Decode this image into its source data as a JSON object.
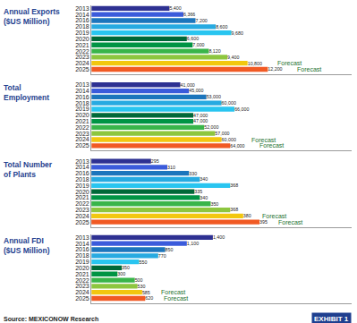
{
  "chart_data": [
    {
      "type": "bar",
      "orientation": "horizontal",
      "title": "Annual Exports\n($US Million)",
      "categories": [
        "2013",
        "2014",
        "2016",
        "2018",
        "2019",
        "2020",
        "2021",
        "2022",
        "2023",
        "2024",
        "2025"
      ],
      "values": [
        5400,
        6366,
        7200,
        8600,
        9680,
        6600,
        7000,
        8120,
        9400,
        10800,
        12200
      ],
      "value_labels": [
        "5,400",
        "6,366",
        "7,200",
        "8,600",
        "9,680",
        "6,600",
        "7,000",
        "8,120",
        "9,400",
        "10,800",
        "12,200"
      ],
      "colors": [
        "#2e3192",
        "#3b5bdb",
        "#1c75bc",
        "#27aae1",
        "#29c5f0",
        "#006838",
        "#009444",
        "#39b54a",
        "#8dc63f",
        "#f2c70f",
        "#f15a24"
      ],
      "xlim": [
        0,
        18000
      ],
      "tick_labels": "y",
      "data_labels": true,
      "annotations": [
        {
          "category": "2024",
          "text": "Forecast"
        },
        {
          "category": "2025",
          "text": "Forecast"
        }
      ]
    },
    {
      "type": "bar",
      "orientation": "horizontal",
      "title": "Total\nEmployment",
      "categories": [
        "2013",
        "2014",
        "2016",
        "2018",
        "2019",
        "2020",
        "2021",
        "2022",
        "2023",
        "2024",
        "2025"
      ],
      "values": [
        41000,
        45000,
        53000,
        60000,
        66000,
        47000,
        47000,
        52000,
        57000,
        60000,
        64000
      ],
      "value_labels": [
        "41,000",
        "45,000",
        "53,000",
        "60,000",
        "66,000",
        "47,000",
        "47,000",
        "52,000",
        "57,000",
        "60,000",
        "64,000"
      ],
      "colors": [
        "#2e3192",
        "#3b5bdb",
        "#1c75bc",
        "#27aae1",
        "#29c5f0",
        "#006838",
        "#009444",
        "#39b54a",
        "#8dc63f",
        "#f2c70f",
        "#f15a24"
      ],
      "xlim": [
        0,
        120000
      ],
      "tick_labels": "y",
      "data_labels": true,
      "annotations": [
        {
          "category": "2024",
          "text": "Forecast"
        },
        {
          "category": "2025",
          "text": "Forecast"
        }
      ]
    },
    {
      "type": "bar",
      "orientation": "horizontal",
      "title": "Total Number\nof Plants",
      "categories": [
        "2013",
        "2014",
        "2016",
        "2018",
        "2019",
        "2020",
        "2021",
        "2022",
        "2023",
        "2024",
        "2025"
      ],
      "values": [
        295,
        310,
        330,
        340,
        368,
        335,
        340,
        350,
        368,
        380,
        395
      ],
      "colors": [
        "#2e3192",
        "#3b5bdb",
        "#1c75bc",
        "#27aae1",
        "#29c5f0",
        "#006838",
        "#009444",
        "#39b54a",
        "#8dc63f",
        "#f2c70f",
        "#f15a24"
      ],
      "xlim": [
        240,
        480
      ],
      "tick_labels": "y",
      "data_labels": true,
      "annotations": [
        {
          "category": "2024",
          "text": "Forecast"
        },
        {
          "category": "2025",
          "text": "Forecast"
        }
      ]
    },
    {
      "type": "bar",
      "orientation": "horizontal",
      "title": "Annual FDI\n($US Million)",
      "categories": [
        "2013",
        "2014",
        "2016",
        "2018",
        "2019",
        "2020",
        "2021",
        "2022",
        "2023",
        "2024",
        "2025"
      ],
      "values": [
        1400,
        1100,
        850,
        770,
        550,
        350,
        300,
        500,
        530,
        585,
        620
      ],
      "value_labels": [
        "1,400",
        "1,100",
        "850",
        "770",
        "550",
        "350",
        "300",
        "500",
        "530",
        "585",
        "620"
      ],
      "colors": [
        "#2e3192",
        "#3b5bdb",
        "#1c75bc",
        "#27aae1",
        "#29c5f0",
        "#006838",
        "#009444",
        "#39b54a",
        "#8dc63f",
        "#f2c70f",
        "#f15a24"
      ],
      "xlim": [
        0,
        3000
      ],
      "tick_labels": "y",
      "data_labels": true,
      "annotations": [
        {
          "category": "2024",
          "text": "Forecast"
        },
        {
          "category": "2025",
          "text": "Forecast"
        }
      ]
    }
  ],
  "source": "Source: MEXICONOW Research",
  "exhibit": "EXHIBIT 1"
}
